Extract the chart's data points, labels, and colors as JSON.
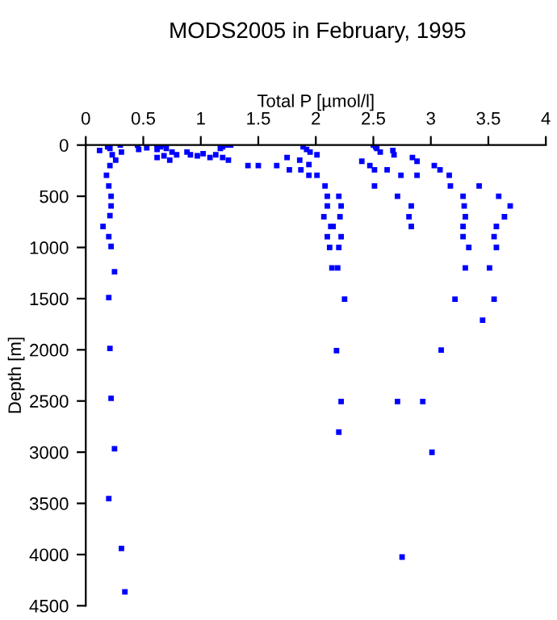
{
  "chart_data": {
    "type": "scatter",
    "title": "MODS2005 in February, 1995",
    "xlabel": "Total P [µmol/l]",
    "ylabel": "Depth [m]",
    "xlim": [
      0,
      4
    ],
    "xticks": [
      0,
      0.5,
      1,
      1.5,
      2,
      2.5,
      3,
      3.5,
      4
    ],
    "ylim": [
      4500,
      0
    ],
    "yticks": [
      0,
      500,
      1000,
      1500,
      2000,
      2500,
      3000,
      3500,
      4000,
      4500
    ],
    "grid": false,
    "legend": false,
    "marker": "square",
    "series": [
      {
        "color": "#0000ff",
        "x": [
          0.12,
          0.19,
          0.21,
          0.23,
          0.26,
          0.21,
          0.18,
          0.2,
          0.22,
          0.22,
          0.21,
          0.15,
          0.2,
          0.22,
          0.25,
          0.31,
          0.3,
          0.45,
          0.46,
          0.53,
          0.2,
          0.21,
          0.22,
          0.25,
          0.2,
          0.31,
          0.34,
          0.62,
          0.65,
          0.68,
          0.7,
          0.62,
          0.62,
          0.68,
          0.73,
          0.75,
          0.79,
          0.88,
          0.91,
          0.97,
          1.02,
          1.08,
          1.13,
          1.17,
          1.19,
          1.22,
          1.26,
          1.19,
          1.24,
          1.41,
          1.5,
          1.66,
          1.75,
          1.77,
          1.86,
          1.87,
          1.89,
          1.92,
          1.95,
          1.94,
          2.01,
          1.94,
          2.01,
          2.08,
          2.1,
          2.2,
          2.1,
          2.22,
          2.07,
          2.21,
          2.13,
          2.15,
          2.1,
          2.22,
          2.12,
          2.2,
          2.14,
          2.19,
          2.25,
          2.18,
          2.22,
          2.2,
          2.4,
          2.47,
          2.5,
          2.52,
          2.53,
          2.51,
          2.51,
          2.56,
          2.67,
          2.68,
          2.62,
          2.74,
          2.71,
          2.84,
          2.88,
          2.88,
          2.83,
          2.81,
          2.83,
          2.71,
          2.93,
          2.75,
          3.09,
          3.01,
          3.03,
          3.08,
          3.16,
          3.17,
          3.28,
          3.29,
          3.3,
          3.28,
          3.28,
          3.33,
          3.3,
          3.42,
          3.59,
          3.69,
          3.64,
          3.57,
          3.55,
          3.57,
          3.51,
          3.21,
          3.55,
          3.45
        ],
        "values": [
          53,
          16,
          32,
          95,
          147,
          200,
          295,
          400,
          500,
          595,
          690,
          795,
          895,
          990,
          1237,
          68,
          0,
          0,
          42,
          26,
          1490,
          1987,
          2474,
          2966,
          3453,
          3940,
          4364,
          0,
          16,
          0,
          32,
          42,
          121,
          105,
          147,
          68,
          95,
          68,
          95,
          105,
          84,
          121,
          95,
          32,
          16,
          0,
          0,
          121,
          147,
          200,
          200,
          200,
          121,
          242,
          147,
          242,
          16,
          42,
          68,
          190,
          95,
          295,
          295,
          400,
          500,
          500,
          595,
          595,
          700,
          700,
          795,
          795,
          895,
          895,
          1000,
          1000,
          1200,
          1200,
          1505,
          2008,
          2505,
          2804,
          158,
          200,
          0,
          16,
          32,
          242,
          400,
          68,
          53,
          95,
          242,
          295,
          500,
          121,
          158,
          295,
          595,
          700,
          795,
          2505,
          2505,
          4024,
          2003,
          3001,
          200,
          242,
          295,
          400,
          500,
          595,
          700,
          795,
          895,
          1000,
          1200,
          400,
          500,
          595,
          700,
          795,
          895,
          1000,
          1200,
          1505,
          1505,
          1710
        ]
      }
    ]
  }
}
